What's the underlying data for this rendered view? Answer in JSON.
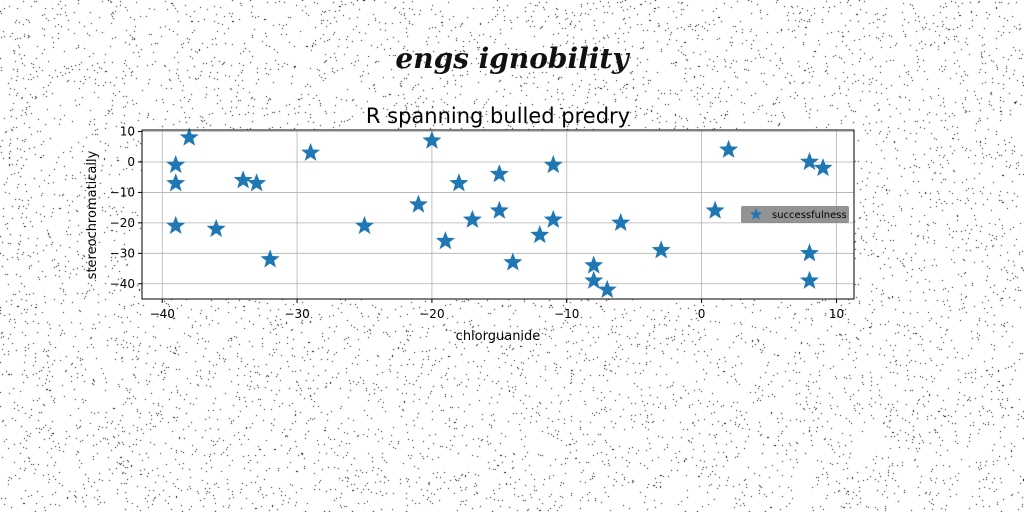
{
  "figure_title": "engs ignobility",
  "chart_data": {
    "type": "scatter",
    "title": "R spanning bulled predry",
    "xlabel": "chlorguanide",
    "ylabel": "stereochromatically",
    "xlim": [
      -41.5,
      11.3
    ],
    "ylim": [
      -45.0,
      10.5
    ],
    "xticks": [
      -40,
      -30,
      -20,
      -10,
      0,
      10
    ],
    "yticks": [
      10,
      0,
      -10,
      -20,
      -30,
      -40
    ],
    "grid": true,
    "marker": "star",
    "legend": {
      "placement": "center-right"
    },
    "series": [
      {
        "name": "successfulness",
        "color": "#1f77b4",
        "points": [
          [
            -38,
            8
          ],
          [
            -39,
            -1
          ],
          [
            -39,
            -7
          ],
          [
            -39,
            -21
          ],
          [
            -36,
            -22
          ],
          [
            -34,
            -6
          ],
          [
            -33,
            -7
          ],
          [
            -32,
            -32
          ],
          [
            -29,
            3
          ],
          [
            -25,
            -21
          ],
          [
            -21,
            -14
          ],
          [
            -20,
            7
          ],
          [
            -19,
            -26
          ],
          [
            -18,
            -7
          ],
          [
            -17,
            -19
          ],
          [
            -15,
            -4
          ],
          [
            -15,
            -16
          ],
          [
            -14,
            -33
          ],
          [
            -12,
            -24
          ],
          [
            -11,
            -1
          ],
          [
            -11,
            -19
          ],
          [
            -8,
            -34
          ],
          [
            -8,
            -39
          ],
          [
            -7,
            -42
          ],
          [
            -6,
            -20
          ],
          [
            -3,
            -29
          ],
          [
            1,
            -16
          ],
          [
            2,
            4
          ],
          [
            8,
            0
          ],
          [
            9,
            -2
          ],
          [
            8,
            -30
          ],
          [
            8,
            -39
          ]
        ]
      }
    ]
  },
  "colors": {
    "background": "#ffffff",
    "noise": "#000000",
    "grid": "#b0b0b0"
  }
}
